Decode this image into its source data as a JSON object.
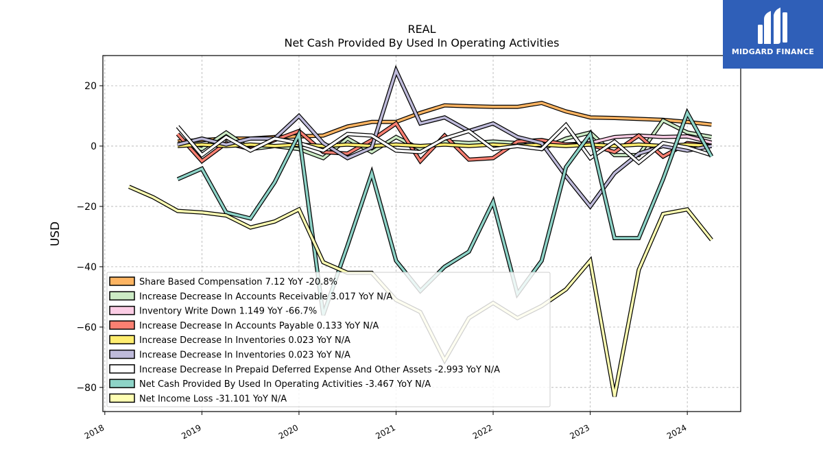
{
  "brand": {
    "name": "MIDGARD FINANCE",
    "bg_color": "#2f5fb8"
  },
  "chart_data": {
    "type": "line",
    "title": "REAL",
    "subtitle": "Net Cash Provided By Used In Operating Activities",
    "ylabel": "USD",
    "xlabel": "",
    "xlim": [
      2017.98,
      2024.55
    ],
    "ylim": [
      -88,
      30
    ],
    "yticks": [
      20,
      0,
      -20,
      -40,
      -60,
      -80
    ],
    "xticks": [
      2018,
      2019,
      2020,
      2021,
      2022,
      2023,
      2024
    ],
    "grid": true,
    "legend_position": "lower-left",
    "series": [
      {
        "name": "Share Based Compensation",
        "legend": "Share Based Compensation  7.12 YoY -20.8%",
        "color": "#fdb462",
        "points": [
          [
            2018.75,
            1.5
          ],
          [
            2019.0,
            2.0
          ],
          [
            2019.25,
            2.5
          ],
          [
            2019.5,
            2.5
          ],
          [
            2019.75,
            3.0
          ],
          [
            2020.0,
            3.2
          ],
          [
            2020.25,
            3.5
          ],
          [
            2020.5,
            6.5
          ],
          [
            2020.75,
            8.0
          ],
          [
            2021.0,
            8.0
          ],
          [
            2021.25,
            11.0
          ],
          [
            2021.5,
            13.5
          ],
          [
            2021.75,
            13.2
          ],
          [
            2022.0,
            13.0
          ],
          [
            2022.25,
            13.0
          ],
          [
            2022.5,
            14.3
          ],
          [
            2022.75,
            11.5
          ],
          [
            2023.0,
            9.5
          ],
          [
            2023.25,
            9.3
          ],
          [
            2023.5,
            9.0
          ],
          [
            2023.75,
            8.7
          ],
          [
            2024.0,
            8.0
          ],
          [
            2024.25,
            7.12
          ]
        ]
      },
      {
        "name": "Increase Decrease In Accounts Receivable",
        "legend": "Increase Decrease In Accounts Receivable  3.017 YoY N/A",
        "color": "#ccebc5",
        "points": [
          [
            2018.75,
            1.0
          ],
          [
            2019.0,
            -1.0
          ],
          [
            2019.25,
            4.5
          ],
          [
            2019.5,
            -1.0
          ],
          [
            2019.75,
            0.0
          ],
          [
            2020.0,
            -1.0
          ],
          [
            2020.25,
            -4.0
          ],
          [
            2020.5,
            2.5
          ],
          [
            2020.75,
            -2.0
          ],
          [
            2021.0,
            3.0
          ],
          [
            2021.25,
            -1.0
          ],
          [
            2021.5,
            1.5
          ],
          [
            2021.75,
            1.0
          ],
          [
            2022.0,
            1.5
          ],
          [
            2022.25,
            1.0
          ],
          [
            2022.5,
            -1.0
          ],
          [
            2022.75,
            2.5
          ],
          [
            2023.0,
            4.5
          ],
          [
            2023.25,
            -3.0
          ],
          [
            2023.5,
            -3.0
          ],
          [
            2023.75,
            8.5
          ],
          [
            2024.0,
            4.5
          ],
          [
            2024.25,
            3.017
          ]
        ]
      },
      {
        "name": "Inventory Write Down",
        "legend": "Inventory Write Down  1.149 YoY -66.7%",
        "color": "#fccde5",
        "points": [
          [
            2022.75,
            0.5
          ],
          [
            2023.0,
            1.0
          ],
          [
            2023.25,
            3.0
          ],
          [
            2023.5,
            3.5
          ],
          [
            2023.75,
            3.0
          ],
          [
            2024.0,
            3.2
          ],
          [
            2024.25,
            1.149
          ]
        ]
      },
      {
        "name": "Increase Decrease In Accounts Payable",
        "legend": "Increase Decrease In Accounts Payable  0.133 YoY N/A",
        "color": "#fb8072",
        "points": [
          [
            2018.75,
            4.0
          ],
          [
            2019.0,
            -5.0
          ],
          [
            2019.25,
            1.0
          ],
          [
            2019.5,
            -1.0
          ],
          [
            2019.75,
            2.0
          ],
          [
            2020.0,
            5.0
          ],
          [
            2020.25,
            -2.0
          ],
          [
            2020.5,
            -2.5
          ],
          [
            2020.75,
            2.0
          ],
          [
            2021.0,
            7.5
          ],
          [
            2021.25,
            -5.0
          ],
          [
            2021.5,
            3.5
          ],
          [
            2021.75,
            -4.5
          ],
          [
            2022.0,
            -4.0
          ],
          [
            2022.25,
            1.5
          ],
          [
            2022.5,
            2.0
          ],
          [
            2022.75,
            0.5
          ],
          [
            2023.0,
            0.5
          ],
          [
            2023.25,
            -2.0
          ],
          [
            2023.5,
            3.5
          ],
          [
            2023.75,
            -3.5
          ],
          [
            2024.0,
            1.0
          ],
          [
            2024.25,
            0.133
          ]
        ]
      },
      {
        "name": "Increase Decrease In Inventories",
        "legend": "Increase Decrease In Inventories  0.023 YoY N/A",
        "color": "#ffed6f",
        "points": [
          [
            2018.75,
            0.0
          ],
          [
            2019.0,
            0.5
          ],
          [
            2019.25,
            0.0
          ],
          [
            2019.5,
            0.5
          ],
          [
            2019.75,
            0.0
          ],
          [
            2020.0,
            0.5
          ],
          [
            2020.25,
            0.0
          ],
          [
            2020.5,
            0.5
          ],
          [
            2020.75,
            0.0
          ],
          [
            2021.0,
            0.5
          ],
          [
            2021.25,
            0.0
          ],
          [
            2021.5,
            0.5
          ],
          [
            2021.75,
            0.0
          ],
          [
            2022.0,
            0.5
          ],
          [
            2022.25,
            0.0
          ],
          [
            2022.5,
            0.5
          ],
          [
            2022.75,
            0.0
          ],
          [
            2023.0,
            0.5
          ],
          [
            2023.25,
            0.0
          ],
          [
            2023.5,
            0.5
          ],
          [
            2023.75,
            0.0
          ],
          [
            2024.0,
            0.5
          ],
          [
            2024.25,
            0.023
          ]
        ]
      },
      {
        "name": "Increase Decrease In Inventories",
        "legend": "Increase Decrease In Inventories  0.023 YoY N/A",
        "color": "#bebada",
        "points": [
          [
            2018.75,
            0.5
          ],
          [
            2019.0,
            2.5
          ],
          [
            2019.25,
            0.5
          ],
          [
            2019.5,
            2.5
          ],
          [
            2019.75,
            2.5
          ],
          [
            2020.0,
            10.0
          ],
          [
            2020.25,
            1.0
          ],
          [
            2020.5,
            -4.0
          ],
          [
            2020.75,
            -0.5
          ],
          [
            2021.0,
            25.0
          ],
          [
            2021.25,
            7.5
          ],
          [
            2021.5,
            9.5
          ],
          [
            2021.75,
            5.0
          ],
          [
            2022.0,
            7.5
          ],
          [
            2022.25,
            3.0
          ],
          [
            2022.5,
            1.0
          ],
          [
            2022.75,
            -10.0
          ],
          [
            2023.0,
            -20.0
          ],
          [
            2023.25,
            -9.0
          ],
          [
            2023.5,
            -2.5
          ],
          [
            2023.75,
            0.0
          ],
          [
            2024.0,
            -1.5
          ],
          [
            2024.25,
            0.023
          ]
        ]
      },
      {
        "name": "Increase Decrease In Prepaid Deferred Expense And Other Assets",
        "legend": "Increase Decrease In Prepaid Deferred Expense And Other Assets  -2.993 YoY N/A",
        "color": "#ffffff",
        "points": [
          [
            2018.75,
            6.5
          ],
          [
            2019.0,
            -3.0
          ],
          [
            2019.25,
            3.0
          ],
          [
            2019.5,
            -1.5
          ],
          [
            2019.75,
            2.5
          ],
          [
            2020.0,
            1.0
          ],
          [
            2020.25,
            -1.5
          ],
          [
            2020.5,
            4.0
          ],
          [
            2020.75,
            3.5
          ],
          [
            2021.0,
            -1.5
          ],
          [
            2021.25,
            -2.0
          ],
          [
            2021.5,
            2.5
          ],
          [
            2021.75,
            5.0
          ],
          [
            2022.0,
            -1.0
          ],
          [
            2022.25,
            0.0
          ],
          [
            2022.5,
            -1.0
          ],
          [
            2022.75,
            7.0
          ],
          [
            2023.0,
            -4.0
          ],
          [
            2023.25,
            1.5
          ],
          [
            2023.5,
            -5.5
          ],
          [
            2023.75,
            1.0
          ],
          [
            2024.0,
            -0.5
          ],
          [
            2024.25,
            -2.993
          ]
        ]
      },
      {
        "name": "Net Cash Provided By Used In Operating Activities",
        "legend": "Net Cash Provided By Used In Operating Activities  -3.467 YoY N/A",
        "color": "#8dd3c7",
        "points": [
          [
            2018.75,
            -11.0
          ],
          [
            2019.0,
            -7.5
          ],
          [
            2019.25,
            -22.0
          ],
          [
            2019.5,
            -24.0
          ],
          [
            2019.75,
            -12.0
          ],
          [
            2020.0,
            4.0
          ],
          [
            2020.25,
            -56.0
          ],
          [
            2020.5,
            -33.0
          ],
          [
            2020.75,
            -9.0
          ],
          [
            2021.0,
            -38.0
          ],
          [
            2021.25,
            -48.0
          ],
          [
            2021.5,
            -40.0
          ],
          [
            2021.75,
            -35.0
          ],
          [
            2022.0,
            -18.5
          ],
          [
            2022.25,
            -49.0
          ],
          [
            2022.5,
            -38.0
          ],
          [
            2022.75,
            -7.0
          ],
          [
            2023.0,
            4.0
          ],
          [
            2023.25,
            -30.5
          ],
          [
            2023.5,
            -30.5
          ],
          [
            2023.75,
            -11.0
          ],
          [
            2024.0,
            11.0
          ],
          [
            2024.25,
            -3.467
          ]
        ]
      },
      {
        "name": "Net Income Loss",
        "legend": "Net Income Loss  -31.101 YoY N/A",
        "color": "#ffffb3",
        "points": [
          [
            2018.25,
            -13.5
          ],
          [
            2018.5,
            -17.0
          ],
          [
            2018.75,
            -21.5
          ],
          [
            2019.0,
            -22.0
          ],
          [
            2019.25,
            -23.0
          ],
          [
            2019.5,
            -27.0
          ],
          [
            2019.75,
            -25.0
          ],
          [
            2020.0,
            -21.0
          ],
          [
            2020.25,
            -38.5
          ],
          [
            2020.5,
            -42.0
          ],
          [
            2020.75,
            -42.0
          ],
          [
            2021.0,
            -51.0
          ],
          [
            2021.25,
            -55.0
          ],
          [
            2021.5,
            -71.0
          ],
          [
            2021.75,
            -57.0
          ],
          [
            2022.0,
            -52.0
          ],
          [
            2022.25,
            -57.0
          ],
          [
            2022.5,
            -53.0
          ],
          [
            2022.75,
            -47.5
          ],
          [
            2023.0,
            -38.0
          ],
          [
            2023.25,
            -83.0
          ],
          [
            2023.5,
            -41.0
          ],
          [
            2023.75,
            -22.5
          ],
          [
            2024.0,
            -21.0
          ],
          [
            2024.25,
            -31.101
          ]
        ]
      }
    ]
  }
}
